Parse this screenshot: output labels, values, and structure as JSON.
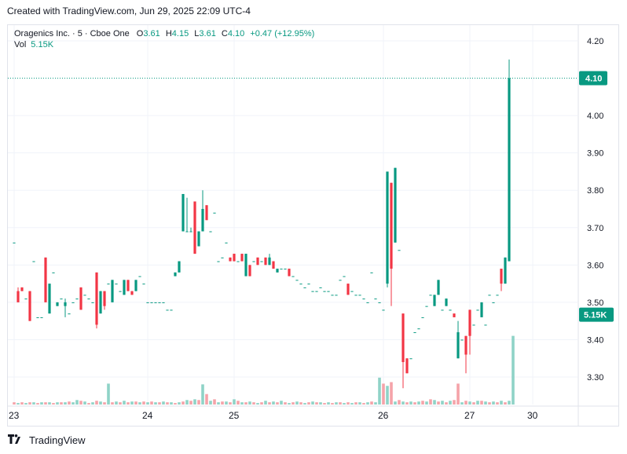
{
  "header": {
    "caption": "Created with TradingView.com, Jun 29, 2025 22:09 UTC-4"
  },
  "legend": {
    "symbol": "Oragenics Inc. · 5 · Cboe One",
    "o_label": "O",
    "o_value": "3.61",
    "h_label": "H",
    "h_value": "4.15",
    "l_label": "L",
    "l_value": "3.61",
    "c_label": "C",
    "c_value": "4.10",
    "change": "+0.47 (+12.95%)",
    "vol_label": "Vol",
    "vol_value": "5.15K"
  },
  "footer": {
    "brand": "TradingView"
  },
  "colors": {
    "up": "#089981",
    "down": "#f23645",
    "vol_up": "#8fd3c7",
    "vol_down": "#f5a3a9",
    "grid": "#f0f3fa",
    "text": "#131722"
  },
  "chart_data": {
    "type": "candlestick",
    "title": "Oragenics Inc. · 5 · Cboe One",
    "ylim": [
      3.22,
      4.25
    ],
    "y_ticks": [
      "4.20",
      "4.00",
      "3.90",
      "3.80",
      "3.70",
      "3.60",
      "3.50",
      "3.40",
      "3.30"
    ],
    "x_ticks": [
      {
        "label": "23",
        "index": 0
      },
      {
        "label": "24",
        "index": 34
      },
      {
        "label": "25",
        "index": 56
      },
      {
        "label": "26",
        "index": 94
      },
      {
        "label": "27",
        "index": 116
      },
      {
        "label": "30",
        "index": 132
      }
    ],
    "last_price_label": "4.10",
    "last_price": 4.1,
    "volume_label": "5.15K",
    "volume_label_level": 3.49,
    "candles": [
      [
        3.66,
        3.66,
        3.66,
        3.66
      ],
      [
        3.53,
        3.54,
        3.5,
        3.5
      ],
      [
        3.54,
        3.54,
        3.53,
        3.53
      ],
      [
        3.51,
        3.51,
        3.51,
        3.51
      ],
      [
        3.53,
        3.53,
        3.45,
        3.45
      ],
      [
        3.61,
        3.61,
        3.61,
        3.61
      ],
      [
        3.46,
        3.46,
        3.46,
        3.46
      ],
      [
        3.46,
        3.46,
        3.46,
        3.46
      ],
      [
        3.62,
        3.62,
        3.5,
        3.5
      ],
      [
        3.47,
        3.55,
        3.47,
        3.55
      ],
      [
        3.58,
        3.58,
        3.58,
        3.58
      ],
      [
        3.49,
        3.5,
        3.49,
        3.5
      ],
      [
        3.51,
        3.51,
        3.51,
        3.51
      ],
      [
        3.49,
        3.51,
        3.46,
        3.5
      ],
      [
        3.47,
        3.47,
        3.47,
        3.47
      ],
      [
        3.5,
        3.5,
        3.5,
        3.5
      ],
      [
        3.51,
        3.51,
        3.51,
        3.51
      ],
      [
        3.54,
        3.54,
        3.48,
        3.48
      ],
      [
        3.52,
        3.52,
        3.52,
        3.52
      ],
      [
        3.51,
        3.51,
        3.51,
        3.51
      ],
      [
        3.5,
        3.5,
        3.5,
        3.5
      ],
      [
        3.58,
        3.58,
        3.43,
        3.44
      ],
      [
        3.47,
        3.53,
        3.47,
        3.53
      ],
      [
        3.53,
        3.53,
        3.48,
        3.49
      ],
      [
        3.55,
        3.55,
        3.55,
        3.55
      ],
      [
        3.5,
        3.56,
        3.5,
        3.56
      ],
      [
        3.55,
        3.55,
        3.55,
        3.55
      ],
      [
        3.53,
        3.53,
        3.53,
        3.53
      ],
      [
        3.52,
        3.56,
        3.52,
        3.56
      ],
      [
        3.56,
        3.56,
        3.53,
        3.53
      ],
      [
        3.53,
        3.53,
        3.52,
        3.52
      ],
      [
        3.53,
        3.56,
        3.53,
        3.56
      ],
      [
        3.57,
        3.57,
        3.57,
        3.57
      ],
      [
        3.55,
        3.55,
        3.55,
        3.55
      ],
      [
        3.5,
        3.5,
        3.5,
        3.5
      ],
      [
        3.5,
        3.5,
        3.5,
        3.5
      ],
      [
        3.5,
        3.5,
        3.5,
        3.5
      ],
      [
        3.5,
        3.5,
        3.5,
        3.5
      ],
      [
        3.5,
        3.5,
        3.5,
        3.5
      ],
      [
        3.48,
        3.48,
        3.48,
        3.48
      ],
      [
        3.48,
        3.48,
        3.48,
        3.48
      ],
      [
        3.57,
        3.58,
        3.57,
        3.58
      ],
      [
        3.58,
        3.61,
        3.58,
        3.61
      ],
      [
        3.69,
        3.79,
        3.69,
        3.79
      ],
      [
        3.69,
        3.78,
        3.69,
        3.69
      ],
      [
        3.69,
        3.7,
        3.69,
        3.69
      ],
      [
        3.77,
        3.77,
        3.63,
        3.63
      ],
      [
        3.65,
        3.69,
        3.65,
        3.69
      ],
      [
        3.69,
        3.8,
        3.69,
        3.75
      ],
      [
        3.76,
        3.76,
        3.72,
        3.72
      ],
      [
        3.69,
        3.69,
        3.69,
        3.69
      ],
      [
        3.74,
        3.74,
        3.74,
        3.74
      ],
      [
        3.61,
        3.61,
        3.61,
        3.61
      ],
      [
        3.62,
        3.62,
        3.62,
        3.62
      ],
      [
        3.66,
        3.66,
        3.66,
        3.66
      ],
      [
        3.62,
        3.62,
        3.61,
        3.61
      ],
      [
        3.63,
        3.63,
        3.61,
        3.61
      ],
      [
        3.61,
        3.61,
        3.61,
        3.61
      ],
      [
        3.63,
        3.63,
        3.61,
        3.61
      ],
      [
        3.57,
        3.63,
        3.57,
        3.63
      ],
      [
        3.6,
        3.6,
        3.57,
        3.57
      ],
      [
        3.61,
        3.61,
        3.61,
        3.61
      ],
      [
        3.62,
        3.62,
        3.6,
        3.6
      ],
      [
        3.61,
        3.61,
        3.61,
        3.61
      ],
      [
        3.62,
        3.62,
        3.6,
        3.6
      ],
      [
        3.6,
        3.63,
        3.6,
        3.62
      ],
      [
        3.61,
        3.61,
        3.59,
        3.59
      ],
      [
        3.58,
        3.59,
        3.58,
        3.59
      ],
      [
        3.59,
        3.59,
        3.59,
        3.59
      ],
      [
        3.59,
        3.59,
        3.59,
        3.59
      ],
      [
        3.59,
        3.59,
        3.57,
        3.57
      ],
      [
        3.57,
        3.57,
        3.57,
        3.57
      ],
      [
        3.56,
        3.56,
        3.56,
        3.56
      ],
      [
        3.55,
        3.55,
        3.55,
        3.55
      ],
      [
        3.54,
        3.54,
        3.54,
        3.54
      ],
      [
        3.55,
        3.55,
        3.55,
        3.55
      ],
      [
        3.53,
        3.53,
        3.53,
        3.53
      ],
      [
        3.53,
        3.53,
        3.53,
        3.53
      ],
      [
        3.54,
        3.54,
        3.54,
        3.54
      ],
      [
        3.53,
        3.53,
        3.53,
        3.53
      ],
      [
        3.53,
        3.53,
        3.53,
        3.53
      ],
      [
        3.52,
        3.52,
        3.52,
        3.52
      ],
      [
        3.52,
        3.52,
        3.52,
        3.52
      ],
      [
        3.56,
        3.56,
        3.56,
        3.56
      ],
      [
        3.57,
        3.57,
        3.57,
        3.57
      ],
      [
        3.55,
        3.55,
        3.52,
        3.52
      ],
      [
        3.53,
        3.53,
        3.53,
        3.53
      ],
      [
        3.52,
        3.52,
        3.52,
        3.52
      ],
      [
        3.52,
        3.52,
        3.52,
        3.52
      ],
      [
        3.51,
        3.51,
        3.51,
        3.51
      ],
      [
        3.5,
        3.5,
        3.5,
        3.5
      ],
      [
        3.58,
        3.58,
        3.58,
        3.58
      ],
      [
        3.51,
        3.51,
        3.51,
        3.51
      ],
      [
        3.5,
        3.5,
        3.5,
        3.5
      ],
      [
        3.48,
        3.48,
        3.48,
        3.48
      ],
      [
        3.55,
        3.85,
        3.54,
        3.85
      ],
      [
        3.82,
        3.82,
        3.49,
        3.59
      ],
      [
        3.66,
        3.86,
        3.66,
        3.86
      ],
      [
        3.64,
        3.64,
        3.64,
        3.64
      ],
      [
        3.47,
        3.47,
        3.27,
        3.34
      ],
      [
        3.35,
        3.35,
        3.31,
        3.31
      ],
      [
        3.35,
        3.35,
        3.35,
        3.35
      ],
      [
        3.42,
        3.42,
        3.42,
        3.42
      ],
      [
        3.43,
        3.43,
        3.43,
        3.43
      ],
      [
        3.46,
        3.46,
        3.46,
        3.46
      ],
      [
        3.49,
        3.49,
        3.49,
        3.49
      ],
      [
        3.52,
        3.52,
        3.52,
        3.52
      ],
      [
        3.49,
        3.52,
        3.49,
        3.52
      ],
      [
        3.52,
        3.56,
        3.52,
        3.56
      ],
      [
        3.48,
        3.48,
        3.48,
        3.48
      ],
      [
        3.49,
        3.51,
        3.49,
        3.51
      ],
      [
        3.48,
        3.48,
        3.48,
        3.48
      ],
      [
        3.47,
        3.47,
        3.46,
        3.46
      ],
      [
        3.35,
        3.45,
        3.35,
        3.42
      ],
      [
        3.4,
        3.4,
        3.4,
        3.4
      ],
      [
        3.41,
        3.41,
        3.31,
        3.36
      ],
      [
        3.48,
        3.48,
        3.36,
        3.41
      ],
      [
        3.44,
        3.44,
        3.44,
        3.44
      ],
      [
        3.48,
        3.48,
        3.48,
        3.48
      ],
      [
        3.46,
        3.5,
        3.46,
        3.5
      ],
      [
        3.44,
        3.44,
        3.44,
        3.44
      ],
      [
        3.52,
        3.52,
        3.52,
        3.52
      ],
      [
        3.5,
        3.5,
        3.5,
        3.5
      ],
      [
        3.52,
        3.52,
        3.52,
        3.52
      ],
      [
        3.59,
        3.59,
        3.53,
        3.55
      ],
      [
        3.55,
        3.62,
        3.55,
        3.62
      ],
      [
        3.61,
        4.15,
        3.61,
        4.1
      ]
    ],
    "volumes": [
      [
        0.03,
        0
      ],
      [
        0.02,
        1
      ],
      [
        0.03,
        0
      ],
      [
        0.02,
        1
      ],
      [
        0.03,
        0
      ],
      [
        0.03,
        1
      ],
      [
        0.02,
        0
      ],
      [
        0.03,
        1
      ],
      [
        0.03,
        0
      ],
      [
        0.03,
        1
      ],
      [
        0.02,
        0
      ],
      [
        0.03,
        1
      ],
      [
        0.03,
        0
      ],
      [
        0.03,
        1
      ],
      [
        0.04,
        0
      ],
      [
        0.03,
        1
      ],
      [
        0.06,
        1
      ],
      [
        0.05,
        0
      ],
      [
        0.04,
        1
      ],
      [
        0.02,
        0
      ],
      [
        0.03,
        1
      ],
      [
        0.05,
        0
      ],
      [
        0.04,
        1
      ],
      [
        0.03,
        0
      ],
      [
        0.28,
        1
      ],
      [
        0.03,
        0
      ],
      [
        0.04,
        1
      ],
      [
        0.03,
        0
      ],
      [
        0.05,
        1
      ],
      [
        0.03,
        0
      ],
      [
        0.04,
        1
      ],
      [
        0.04,
        0
      ],
      [
        0.03,
        1
      ],
      [
        0.04,
        0
      ],
      [
        0.03,
        1
      ],
      [
        0.04,
        0
      ],
      [
        0.03,
        1
      ],
      [
        0.03,
        0
      ],
      [
        0.04,
        1
      ],
      [
        0.03,
        0
      ],
      [
        0.03,
        1
      ],
      [
        0.02,
        0
      ],
      [
        0.03,
        1
      ],
      [
        0.04,
        0
      ],
      [
        0.06,
        1
      ],
      [
        0.05,
        0
      ],
      [
        0.07,
        1
      ],
      [
        0.06,
        0
      ],
      [
        0.27,
        1
      ],
      [
        0.14,
        0
      ],
      [
        0.05,
        1
      ],
      [
        0.07,
        0
      ],
      [
        0.03,
        1
      ],
      [
        0.04,
        0
      ],
      [
        0.04,
        1
      ],
      [
        0.03,
        0
      ],
      [
        0.07,
        1
      ],
      [
        0.05,
        0
      ],
      [
        0.03,
        1
      ],
      [
        0.03,
        0
      ],
      [
        0.04,
        1
      ],
      [
        0.03,
        0
      ],
      [
        0.02,
        1
      ],
      [
        0.03,
        0
      ],
      [
        0.05,
        1
      ],
      [
        0.03,
        0
      ],
      [
        0.04,
        1
      ],
      [
        0.03,
        0
      ],
      [
        0.05,
        1
      ],
      [
        0.03,
        0
      ],
      [
        0.02,
        1
      ],
      [
        0.03,
        0
      ],
      [
        0.04,
        1
      ],
      [
        0.03,
        0
      ],
      [
        0.02,
        1
      ],
      [
        0.03,
        0
      ],
      [
        0.04,
        1
      ],
      [
        0.03,
        0
      ],
      [
        0.03,
        1
      ],
      [
        0.02,
        0
      ],
      [
        0.03,
        1
      ],
      [
        0.02,
        0
      ],
      [
        0.03,
        1
      ],
      [
        0.03,
        0
      ],
      [
        0.02,
        1
      ],
      [
        0.03,
        0
      ],
      [
        0.02,
        1
      ],
      [
        0.03,
        0
      ],
      [
        0.03,
        1
      ],
      [
        0.02,
        0
      ],
      [
        0.03,
        1
      ],
      [
        0.04,
        0
      ],
      [
        0.03,
        1
      ],
      [
        0.36,
        1
      ],
      [
        0.28,
        0
      ],
      [
        0.25,
        1
      ],
      [
        0.3,
        0
      ],
      [
        0.04,
        1
      ],
      [
        0.06,
        0
      ],
      [
        0.04,
        1
      ],
      [
        0.03,
        0
      ],
      [
        0.04,
        1
      ],
      [
        0.03,
        0
      ],
      [
        0.04,
        1
      ],
      [
        0.05,
        0
      ],
      [
        0.04,
        1
      ],
      [
        0.07,
        0
      ],
      [
        0.06,
        1
      ],
      [
        0.04,
        0
      ],
      [
        0.05,
        1
      ],
      [
        0.03,
        0
      ],
      [
        0.05,
        1
      ],
      [
        0.06,
        0
      ],
      [
        0.28,
        0
      ],
      [
        0.03,
        1
      ],
      [
        0.05,
        0
      ],
      [
        0.04,
        1
      ],
      [
        0.03,
        0
      ],
      [
        0.05,
        1
      ],
      [
        0.05,
        0
      ],
      [
        0.04,
        1
      ],
      [
        0.03,
        0
      ],
      [
        0.04,
        1
      ],
      [
        0.03,
        0
      ],
      [
        0.05,
        1
      ],
      [
        0.03,
        0
      ],
      [
        0.05,
        1
      ],
      [
        0.92,
        1
      ]
    ]
  }
}
